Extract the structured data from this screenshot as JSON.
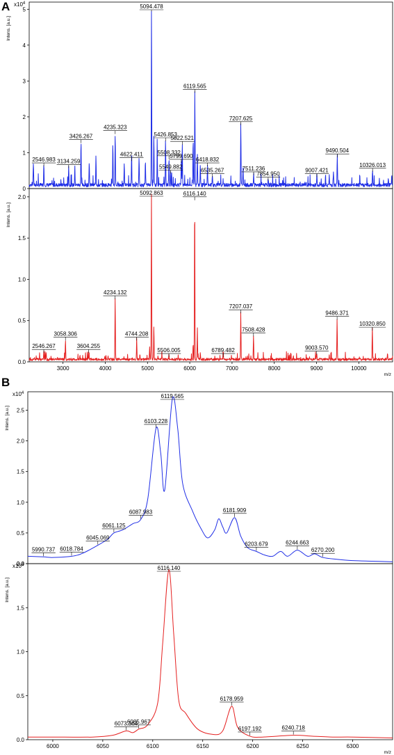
{
  "panel_labels": [
    "A",
    "B"
  ],
  "chart_data": [
    {
      "panel": "A",
      "type": "line",
      "color": "#1f2ee6",
      "ylabel": "Intens. [a.u.]",
      "y_multiplier": "x10^4",
      "xlim": [
        2200,
        10800
      ],
      "ylim": [
        0,
        5.2
      ],
      "xticks": [],
      "yticks": [
        "0",
        "1",
        "2",
        "3",
        "4",
        "5"
      ],
      "baseline": 0.1,
      "peaks": [
        {
          "x": 2300,
          "y": 0.65
        },
        {
          "x": 2546.983,
          "y": 0.6,
          "label": "2546.983"
        },
        {
          "x": 3134.259,
          "y": 0.55,
          "label": "3134.259"
        },
        {
          "x": 3280,
          "y": 0.5
        },
        {
          "x": 3426.267,
          "y": 1.25,
          "label": "3426.267"
        },
        {
          "x": 3620,
          "y": 0.6
        },
        {
          "x": 3780,
          "y": 0.85
        },
        {
          "x": 4180,
          "y": 1.2
        },
        {
          "x": 4235.323,
          "y": 1.5,
          "label": "4235.323"
        },
        {
          "x": 4450,
          "y": 0.6
        },
        {
          "x": 4622.411,
          "y": 0.75,
          "label": "4622.411"
        },
        {
          "x": 4800,
          "y": 0.8
        },
        {
          "x": 4950,
          "y": 0.7
        },
        {
          "x": 5094.478,
          "y": 4.92,
          "label": "5094.478"
        },
        {
          "x": 5150,
          "y": 1.4
        },
        {
          "x": 5230,
          "y": 1.1
        },
        {
          "x": 5426.853,
          "y": 1.3,
          "label": "5426.853"
        },
        {
          "x": 5508.332,
          "y": 0.8,
          "label": "5508.332"
        },
        {
          "x": 5549.882,
          "y": 0.4,
          "label": "5549.882"
        },
        {
          "x": 5799.69,
          "y": 0.7,
          "label": "5799.690"
        },
        {
          "x": 5822.521,
          "y": 1.2,
          "label": "5822.521"
        },
        {
          "x": 6080,
          "y": 1.3
        },
        {
          "x": 6119.565,
          "y": 2.65,
          "label": "6119.565"
        },
        {
          "x": 6180,
          "y": 0.9
        },
        {
          "x": 6250,
          "y": 0.6
        },
        {
          "x": 6418.832,
          "y": 0.6,
          "label": "6418.832"
        },
        {
          "x": 6535.267,
          "y": 0.3,
          "label": "6535.267"
        },
        {
          "x": 7207.625,
          "y": 1.75,
          "label": "7207.625"
        },
        {
          "x": 7260,
          "y": 0.5
        },
        {
          "x": 7511.236,
          "y": 0.35,
          "label": "7511.236"
        },
        {
          "x": 7854.95,
          "y": 0.2,
          "label": "7854.950"
        },
        {
          "x": 9007.421,
          "y": 0.3,
          "label": "9007.421"
        },
        {
          "x": 9300,
          "y": 0.25
        },
        {
          "x": 9400,
          "y": 0.4
        },
        {
          "x": 9490.504,
          "y": 0.85,
          "label": "9490.504"
        },
        {
          "x": 10326.013,
          "y": 0.45,
          "label": "10326.013"
        },
        {
          "x": 10700,
          "y": 0.2
        }
      ]
    },
    {
      "panel": "A",
      "type": "line",
      "color": "#e52020",
      "ylabel": "Intens. [a.u.]",
      "xlabel": "m/z",
      "xlim": [
        2200,
        10800
      ],
      "ylim": [
        0,
        2.1
      ],
      "xticks": [
        "3000",
        "4000",
        "5000",
        "6000",
        "7000",
        "8000",
        "9000",
        "10000"
      ],
      "yticks": [
        "0.0",
        "0.5",
        "1.0",
        "1.5",
        "2.0"
      ],
      "baseline": 0.03,
      "peaks": [
        {
          "x": 2546.267,
          "y": 0.1,
          "label": "2546.267"
        },
        {
          "x": 2600,
          "y": 0.08
        },
        {
          "x": 3058.306,
          "y": 0.25,
          "label": "3058.306"
        },
        {
          "x": 3400,
          "y": 0.05
        },
        {
          "x": 3604.255,
          "y": 0.1,
          "label": "3604.255"
        },
        {
          "x": 4234.132,
          "y": 0.75,
          "label": "4234.132"
        },
        {
          "x": 4744.208,
          "y": 0.25,
          "label": "4744.208"
        },
        {
          "x": 5050,
          "y": 0.15
        },
        {
          "x": 5092.863,
          "y": 2.0,
          "label": "5092.863"
        },
        {
          "x": 5150,
          "y": 0.42
        },
        {
          "x": 5506.005,
          "y": 0.05,
          "label": "5506.005"
        },
        {
          "x": 6080,
          "y": 0.2
        },
        {
          "x": 6116.14,
          "y": 1.95,
          "label": "6116.140"
        },
        {
          "x": 6180,
          "y": 0.35
        },
        {
          "x": 6789.482,
          "y": 0.05,
          "label": "6789.482"
        },
        {
          "x": 7207.037,
          "y": 0.58,
          "label": "7207.037"
        },
        {
          "x": 7508.428,
          "y": 0.3,
          "label": "7508.428"
        },
        {
          "x": 8450,
          "y": 0.05
        },
        {
          "x": 9003.57,
          "y": 0.08,
          "label": "9003.570"
        },
        {
          "x": 9300,
          "y": 0.05
        },
        {
          "x": 9486.371,
          "y": 0.5,
          "label": "9486.371"
        },
        {
          "x": 10320.85,
          "y": 0.37,
          "label": "10320.850"
        },
        {
          "x": 10680,
          "y": 0.07
        }
      ]
    },
    {
      "panel": "B",
      "type": "line",
      "color": "#1f2ee6",
      "ylabel": "Intens. [a.u.]",
      "y_multiplier": "x10^4",
      "xlim": [
        5975,
        6340
      ],
      "ylim": [
        0,
        2.8
      ],
      "xticks": [],
      "yticks": [
        "0.0",
        "0.5",
        "1.0",
        "1.5",
        "2.0",
        "2.5"
      ],
      "points": [
        [
          5975,
          0.12
        ],
        [
          5990.737,
          0.11
        ],
        [
          6000,
          0.1
        ],
        [
          6018.784,
          0.12
        ],
        [
          6030,
          0.17
        ],
        [
          6045.069,
          0.3
        ],
        [
          6055,
          0.4
        ],
        [
          6061.125,
          0.5
        ],
        [
          6070,
          0.55
        ],
        [
          6080,
          0.65
        ],
        [
          6087.983,
          0.72
        ],
        [
          6095,
          1.05
        ],
        [
          6103.228,
          2.2
        ],
        [
          6108,
          1.8
        ],
        [
          6112,
          1.2
        ],
        [
          6119.565,
          2.68
        ],
        [
          6125,
          2.2
        ],
        [
          6130,
          1.3
        ],
        [
          6140,
          0.85
        ],
        [
          6148,
          0.58
        ],
        [
          6155,
          0.42
        ],
        [
          6162,
          0.55
        ],
        [
          6166,
          0.73
        ],
        [
          6170,
          0.6
        ],
        [
          6174,
          0.5
        ],
        [
          6181.909,
          0.75
        ],
        [
          6188,
          0.45
        ],
        [
          6195,
          0.26
        ],
        [
          6203.679,
          0.2
        ],
        [
          6212,
          0.14
        ],
        [
          6220,
          0.12
        ],
        [
          6228,
          0.2
        ],
        [
          6235,
          0.12
        ],
        [
          6244.663,
          0.22
        ],
        [
          6255,
          0.12
        ],
        [
          6262,
          0.16
        ],
        [
          6270.2,
          0.1
        ],
        [
          6285,
          0.07
        ],
        [
          6300,
          0.05
        ],
        [
          6320,
          0.04
        ],
        [
          6340,
          0.03
        ]
      ],
      "labels": [
        {
          "x": 5990.737,
          "y": 0.11,
          "text": "5990.737"
        },
        {
          "x": 6018.784,
          "y": 0.12,
          "text": "6018.784"
        },
        {
          "x": 6045.069,
          "y": 0.3,
          "text": "6045.069"
        },
        {
          "x": 6061.125,
          "y": 0.5,
          "text": "6061.125"
        },
        {
          "x": 6087.983,
          "y": 0.72,
          "text": "6087.983"
        },
        {
          "x": 6103.228,
          "y": 2.2,
          "text": "6103.228"
        },
        {
          "x": 6119.565,
          "y": 2.68,
          "text": "6119.565"
        },
        {
          "x": 6181.909,
          "y": 0.75,
          "text": "6181.909"
        },
        {
          "x": 6203.679,
          "y": 0.2,
          "text": "6203.679"
        },
        {
          "x": 6244.663,
          "y": 0.22,
          "text": "6244.663"
        },
        {
          "x": 6270.2,
          "y": 0.1,
          "text": "6270.200"
        }
      ]
    },
    {
      "panel": "B",
      "type": "line",
      "color": "#e52020",
      "ylabel": "Intens. [a.u.]",
      "y_multiplier": "x10^4",
      "xlabel": "m/z",
      "xlim": [
        5975,
        6340
      ],
      "ylim": [
        0,
        2.0
      ],
      "xticks": [
        "6000",
        "6050",
        "6100",
        "6150",
        "6200",
        "6250",
        "6300"
      ],
      "yticks": [
        "0.0",
        "0.5",
        "1.0",
        "1.5",
        "2.0"
      ],
      "points": [
        [
          5975,
          0.03
        ],
        [
          6000,
          0.03
        ],
        [
          6040,
          0.03
        ],
        [
          6060,
          0.05
        ],
        [
          6073.364,
          0.1
        ],
        [
          6080,
          0.08
        ],
        [
          6085.967,
          0.12
        ],
        [
          6095,
          0.17
        ],
        [
          6105,
          0.42
        ],
        [
          6110,
          1.1
        ],
        [
          6116.14,
          1.93
        ],
        [
          6121,
          1.2
        ],
        [
          6126,
          0.45
        ],
        [
          6133,
          0.3
        ],
        [
          6145,
          0.12
        ],
        [
          6160,
          0.06
        ],
        [
          6170,
          0.1
        ],
        [
          6178.959,
          0.38
        ],
        [
          6185,
          0.14
        ],
        [
          6197.192,
          0.04
        ],
        [
          6210,
          0.03
        ],
        [
          6240.718,
          0.05
        ],
        [
          6260,
          0.04
        ],
        [
          6280,
          0.03
        ],
        [
          6300,
          0.03
        ],
        [
          6340,
          0.02
        ]
      ],
      "labels": [
        {
          "x": 6073.364,
          "y": 0.1,
          "text": "6073.364"
        },
        {
          "x": 6085.967,
          "y": 0.12,
          "text": "6085.967"
        },
        {
          "x": 6116.14,
          "y": 1.93,
          "text": "6116.140"
        },
        {
          "x": 6178.959,
          "y": 0.38,
          "text": "6178.959"
        },
        {
          "x": 6197.192,
          "y": 0.04,
          "text": "6197.192"
        },
        {
          "x": 6240.718,
          "y": 0.05,
          "text": "6240.718"
        }
      ]
    }
  ]
}
